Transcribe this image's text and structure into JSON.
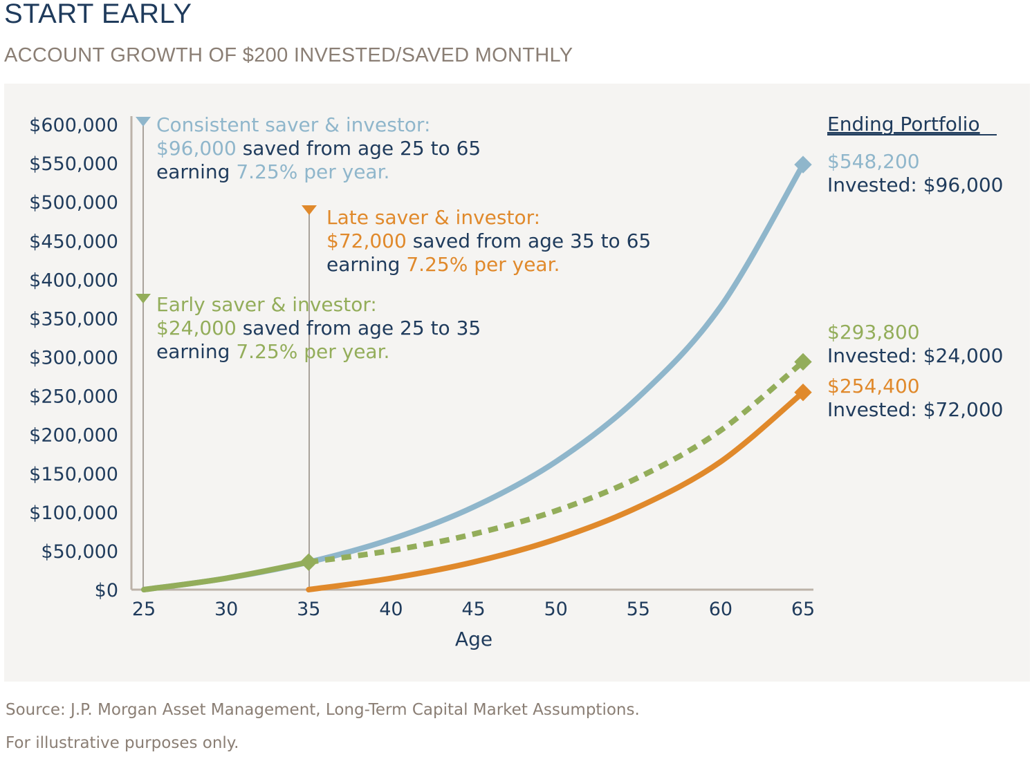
{
  "header": {
    "title": "START EARLY",
    "subtitle": "ACCOUNT GROWTH OF $200 INVESTED/SAVED MONTHLY"
  },
  "footer": {
    "source": "Source: J.P. Morgan Asset Management, Long-Term Capital Market Assumptions.",
    "note": "For illustrative purposes only."
  },
  "colors": {
    "consistent": "#8fb6cb",
    "late": "#e0892b",
    "early": "#93ad5a",
    "navy": "#1f3b5c",
    "axis": "#bcb2a8"
  },
  "chart_data": {
    "type": "line",
    "xlabel": "Age",
    "ylabel": "",
    "xlim": [
      25,
      65
    ],
    "ylim": [
      0,
      600000
    ],
    "x_ticks": [
      "25",
      "30",
      "35",
      "40",
      "45",
      "50",
      "55",
      "60",
      "65"
    ],
    "y_ticks": [
      "$0",
      "$50,000",
      "$100,000",
      "$150,000",
      "$200,000",
      "$250,000",
      "$300,000",
      "$350,000",
      "$400,000",
      "$450,000",
      "$500,000",
      "$550,000",
      "$600,000"
    ],
    "series": [
      {
        "key": "consistent",
        "style": "solid",
        "points": [
          [
            25,
            0
          ],
          [
            30,
            14700
          ],
          [
            35,
            35500
          ],
          [
            40,
            65000
          ],
          [
            45,
            106500
          ],
          [
            50,
            165000
          ],
          [
            55,
            248000
          ],
          [
            60,
            365000
          ],
          [
            65,
            548200
          ]
        ]
      },
      {
        "key": "early",
        "style": "dashed",
        "points": [
          [
            25,
            0
          ],
          [
            30,
            14700
          ],
          [
            35,
            35500
          ],
          [
            40,
            50400
          ],
          [
            45,
            71600
          ],
          [
            50,
            101700
          ],
          [
            55,
            144500
          ],
          [
            60,
            205300
          ],
          [
            65,
            293800
          ]
        ]
      },
      {
        "key": "late",
        "style": "solid",
        "points": [
          [
            35,
            0
          ],
          [
            40,
            14700
          ],
          [
            45,
            35500
          ],
          [
            50,
            65000
          ],
          [
            55,
            106500
          ],
          [
            60,
            165000
          ],
          [
            65,
            254400
          ]
        ]
      }
    ],
    "annotations": {
      "consistent": {
        "start_age": 25,
        "title": "Consistent saver & investor:",
        "amount": "$96,000",
        "middle": " saved from age 25 to 65",
        "earning": "earning ",
        "rate": "7.25% per year."
      },
      "late": {
        "start_age": 35,
        "title": "Late saver & investor:",
        "amount": "$72,000",
        "middle": " saved from age 35 to 65",
        "earning": "earning ",
        "rate": "7.25% per year."
      },
      "early": {
        "start_age": 25,
        "title": "Early saver & investor:",
        "amount": "$24,000",
        "middle": " saved from age 25 to 35",
        "earning": "earning ",
        "rate": "7.25% per year."
      }
    },
    "ending_portfolio": {
      "heading": "Ending Portfolio",
      "items": [
        {
          "key": "consistent",
          "value": "$548,200",
          "invested": "Invested: $96,000"
        },
        {
          "key": "early",
          "value": "$293,800",
          "invested": "Invested: $24,000"
        },
        {
          "key": "late",
          "value": "$254,400",
          "invested": "Invested: $72,000"
        }
      ]
    }
  }
}
